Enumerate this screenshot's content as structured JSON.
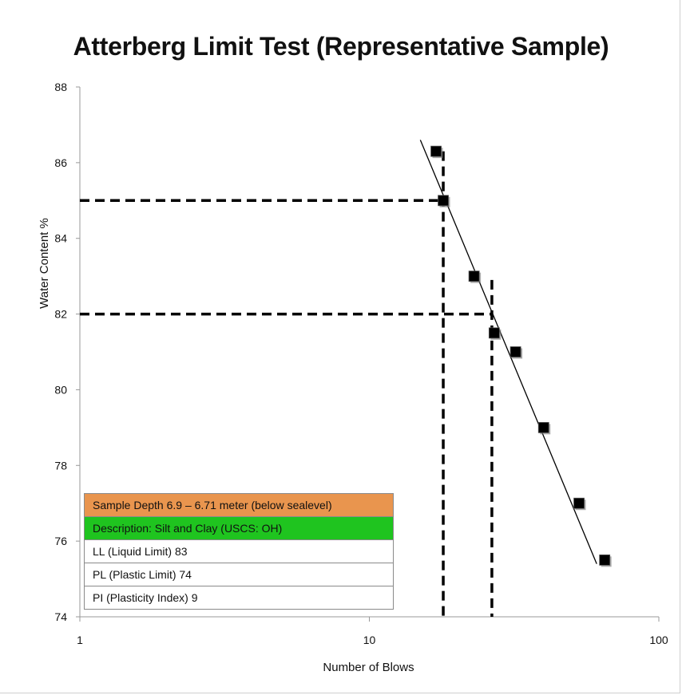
{
  "chart_data": {
    "type": "scatter",
    "title": "Atterberg Limit Test (Representative Sample)",
    "xlabel": "Number of Blows",
    "ylabel": "Water Content %",
    "x_scale": "log",
    "xlim": [
      1,
      100
    ],
    "ylim": [
      74,
      88
    ],
    "x_ticks": [
      "1",
      "10",
      "100"
    ],
    "y_ticks": [
      "74",
      "76",
      "78",
      "80",
      "82",
      "84",
      "86",
      "88"
    ],
    "grid": false,
    "series": [
      {
        "points": [
          {
            "x": 17,
            "y": 86.3
          },
          {
            "x": 18,
            "y": 85.0
          },
          {
            "x": 23,
            "y": 83.0
          },
          {
            "x": 27,
            "y": 81.5
          },
          {
            "x": 32,
            "y": 81.0
          },
          {
            "x": 40,
            "y": 79.0
          },
          {
            "x": 53,
            "y": 77.0
          },
          {
            "x": 65,
            "y": 75.5
          }
        ],
        "marker": "square",
        "color": "#000000"
      }
    ],
    "trendline": {
      "x": [
        15,
        61
      ],
      "y": [
        86.6,
        75.4
      ]
    },
    "reference_lines": [
      {
        "y": 85,
        "x_end": 18
      },
      {
        "y": 82,
        "x_end": 26.5
      }
    ]
  },
  "info_box": {
    "rows": [
      {
        "text": "Sample Depth 6.9 – 6.71 meter (below sealevel)",
        "color": "#E9954E"
      },
      {
        "text": "Description: Silt and Clay (USCS: OH)",
        "color": "#1FC41F"
      },
      {
        "text": "LL (Liquid Limit)  83",
        "color": "#FFFFFF"
      },
      {
        "text": "PL (Plastic Limit) 74",
        "color": "#FFFFFF"
      },
      {
        "text": "PI (Plasticity Index) 9",
        "color": "#FFFFFF"
      }
    ]
  }
}
